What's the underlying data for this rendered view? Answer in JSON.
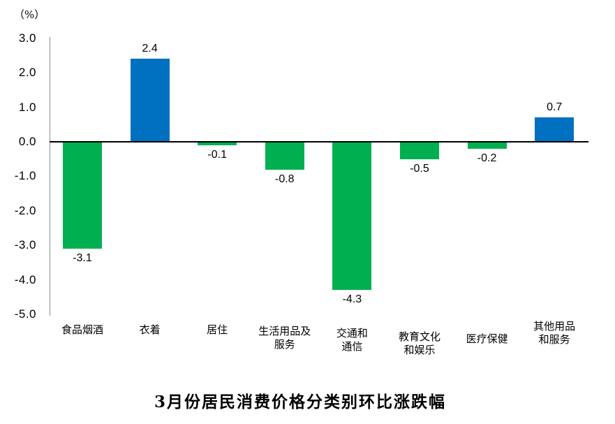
{
  "chart": {
    "unit_label": "（%）",
    "title": "3月份居民消费价格分类别环比涨跌幅"
  },
  "chart_data": {
    "type": "bar",
    "title": "3月份居民消费价格分类别环比涨跌幅",
    "unit_label": "（%）",
    "categories": [
      "食品烟酒",
      "衣着",
      "居住",
      "生活用品及服务",
      "交通和通信",
      "教育文化和娱乐",
      "医疗保健",
      "其他用品和服务"
    ],
    "category_lines": [
      [
        "食品烟酒"
      ],
      [
        "衣着"
      ],
      [
        "居住"
      ],
      [
        "生活用品及",
        "服务"
      ],
      [
        "交通和",
        "通信"
      ],
      [
        "教育文化",
        "和娱乐"
      ],
      [
        "医疗保健"
      ],
      [
        "其他用品",
        "和服务"
      ]
    ],
    "values": [
      -3.1,
      2.4,
      -0.1,
      -0.8,
      -4.3,
      -0.5,
      -0.2,
      0.7
    ],
    "data_labels": [
      "-3.1",
      "2.4",
      "-0.1",
      "-0.8",
      "-4.3",
      "-0.5",
      "-0.2",
      "0.7"
    ],
    "xlabel": "",
    "ylabel": "（%）",
    "ylim": [
      -5.0,
      3.0
    ],
    "ytick_step": 1.0,
    "yticks": [
      "3.0",
      "2.0",
      "1.0",
      "0.0",
      "-1.0",
      "-2.0",
      "-3.0",
      "-4.0",
      "-5.0"
    ],
    "positive_color": "#0070C0",
    "negative_color": "#00B050",
    "zero_line_color": "#000000",
    "axis_line_color": "#8c8c8c",
    "grid": false,
    "legend_position": "none"
  }
}
